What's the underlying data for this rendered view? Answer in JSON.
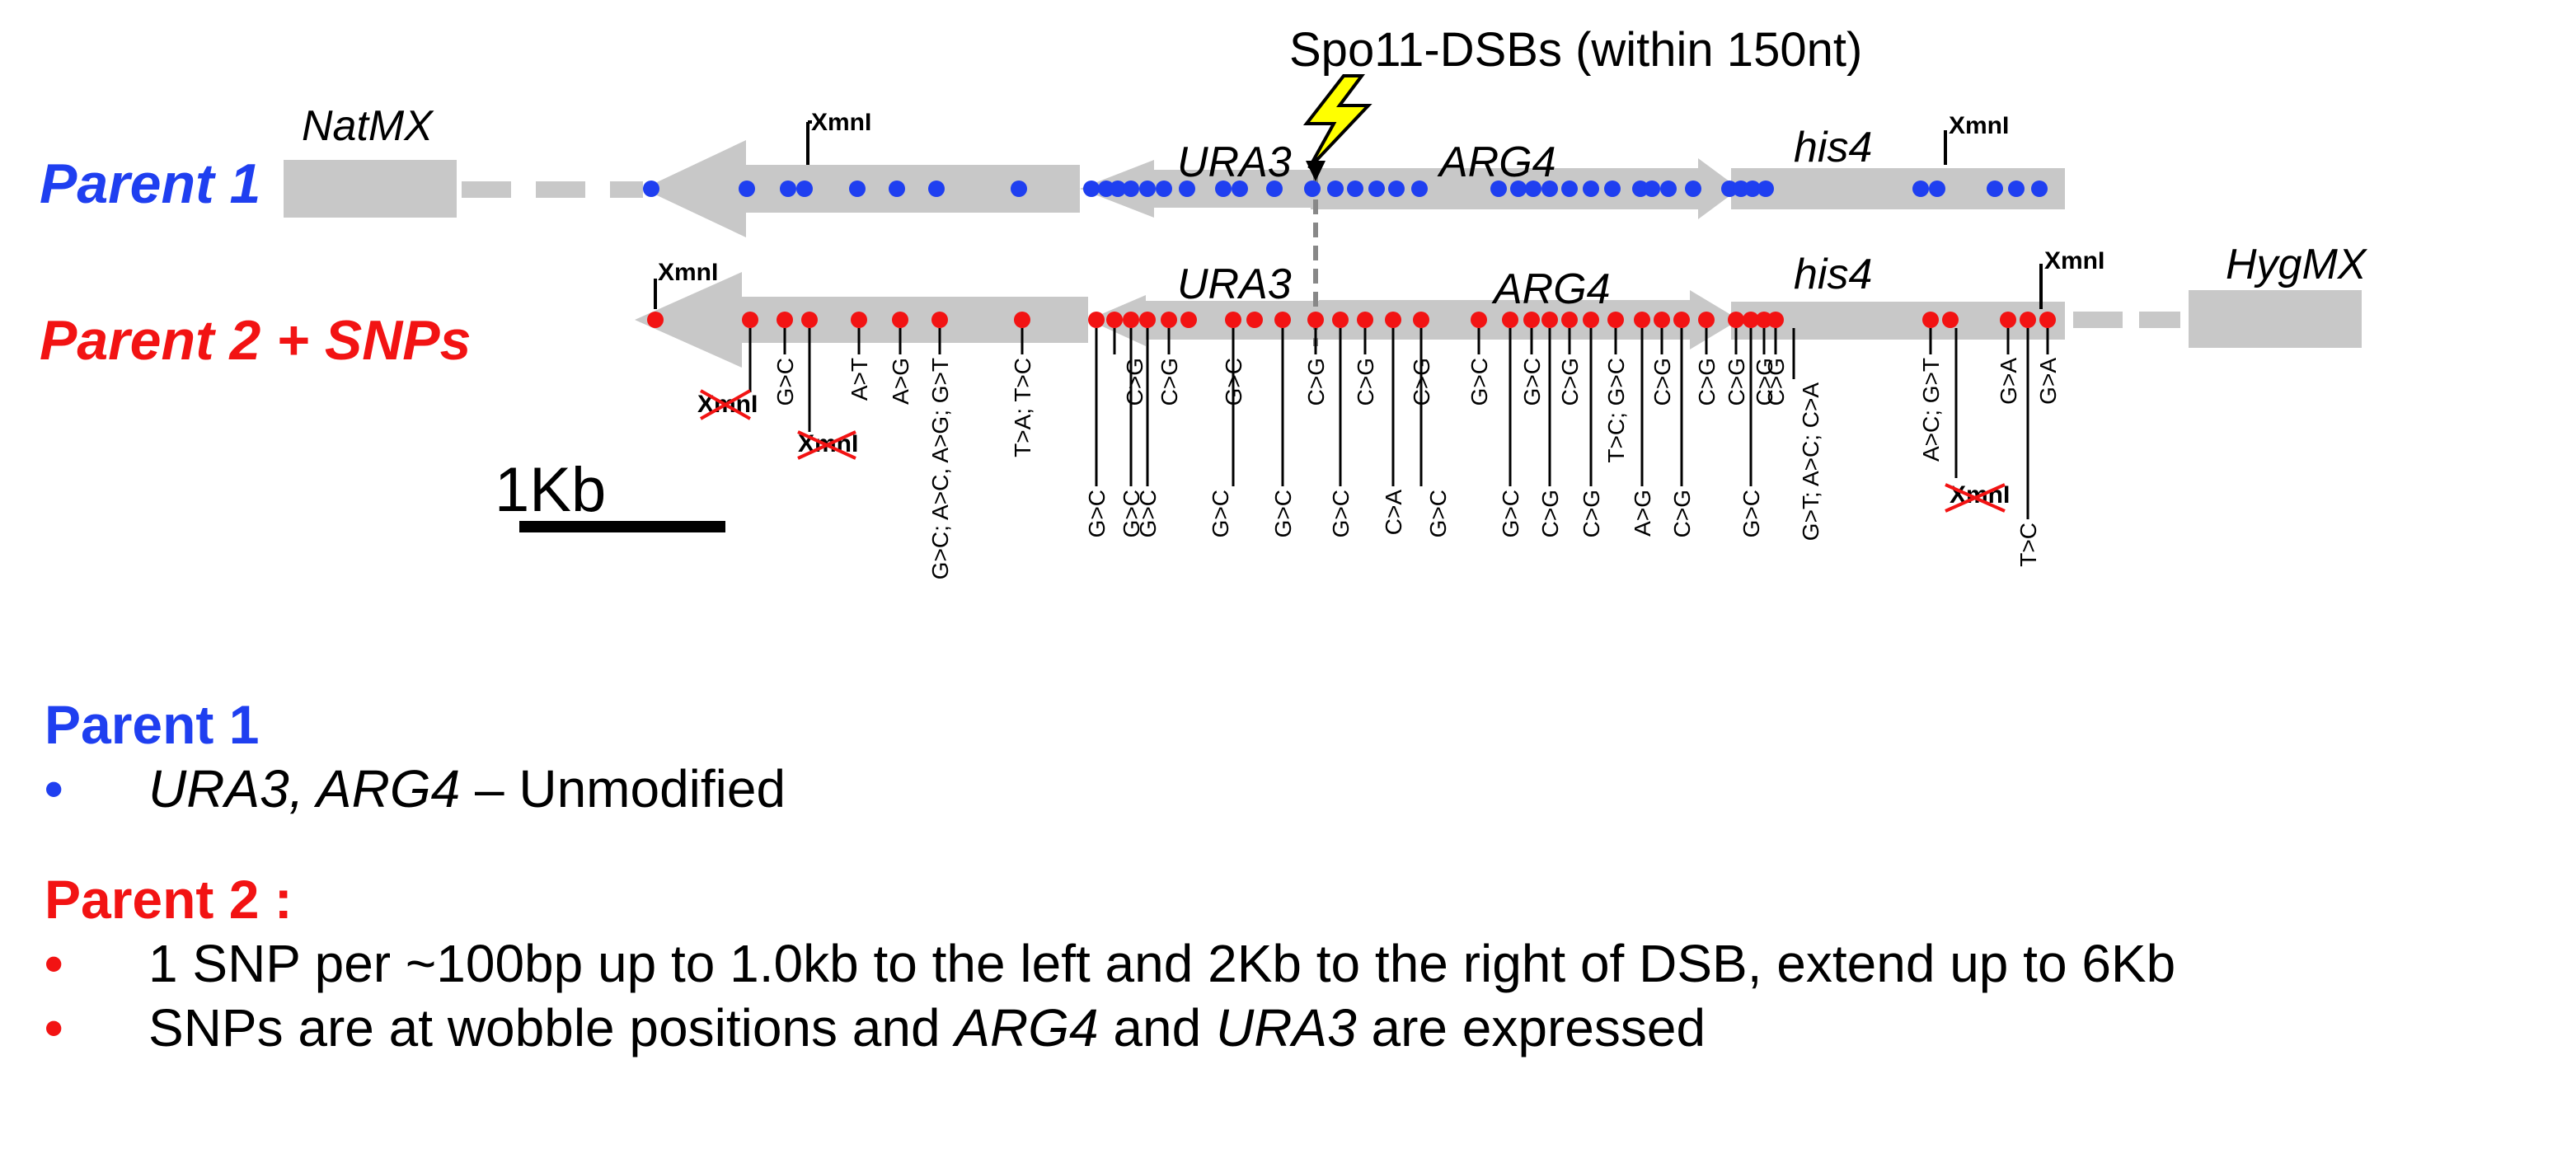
{
  "title": "Spo11-DSBs (within 150nt)",
  "parent1_label": "Parent 1",
  "parent2_label": "Parent 2 + SNPs",
  "scale_label": "1Kb",
  "gene_labels": {
    "natmx": "NatMX",
    "hygmx": "HygMX",
    "ura3": "URA3",
    "arg4": "ARG4",
    "his4": "his4"
  },
  "site_label": "XmnI",
  "snp_labels": [
    "G>C",
    "A>T",
    "A>G",
    "G>C; A>C, A>G; G>T",
    "T>A; T>C",
    "G>C",
    "C>G",
    "G>C",
    "G>C",
    "C>G",
    "G>C",
    "G>C",
    "G>C",
    "C>G",
    "G>C",
    "C>G",
    "C>A",
    "C>G",
    "G>C",
    "G>C",
    "G>C",
    "G>C",
    "C>G",
    "C>G",
    "C>G",
    "T>C; G>C",
    "A>G",
    "C>G",
    "C>G",
    "C>G",
    "C>G",
    "G>C",
    "C>G",
    "C>G",
    "G>T; A>C; C>A",
    "A>C; G>T",
    "G>A",
    "G>A",
    "T>C"
  ],
  "colors": {
    "parent1": "#1f3ff0",
    "parent2": "#f21313",
    "track": "#c8c8c8"
  },
  "legend": {
    "parent1_heading": "Parent 1",
    "parent1_bullet_genes": "URA3, ARG4",
    "parent1_bullet_rest": " – Unmodified",
    "parent2_heading": "Parent 2 :",
    "parent2_bullet1": "1 SNP per ~100bp up to 1.0kb to the left and 2Kb to the right of  DSB, extend up to 6Kb",
    "parent2_bullet2_pre": "SNPs are at wobble positions and ",
    "parent2_bullet2_arg4": "ARG4",
    "parent2_bullet2_and": " and ",
    "parent2_bullet2_ura3": "URA3",
    "parent2_bullet2_post": " are expressed",
    "bullet": "•"
  }
}
